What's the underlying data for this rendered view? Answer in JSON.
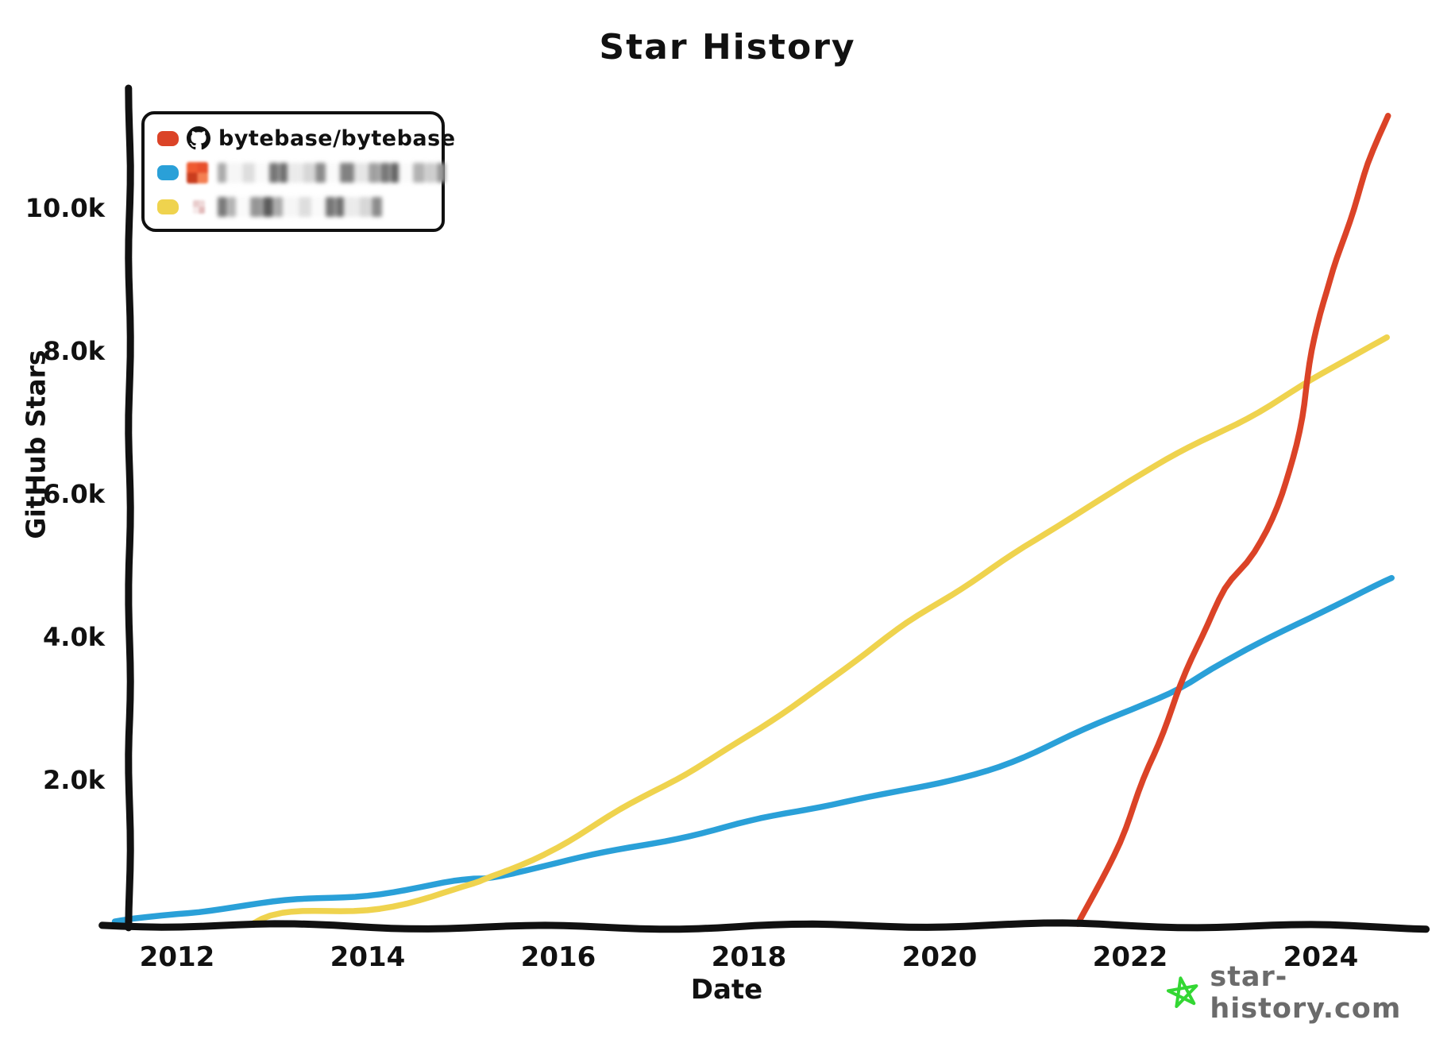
{
  "title": "Star History",
  "axes": {
    "x_label": "Date",
    "y_label": "GitHub Stars",
    "x_ticks": [
      2012,
      2014,
      2016,
      2018,
      2020,
      2022,
      2024
    ],
    "y_ticks": [
      {
        "label": "2.0k",
        "value": 2000
      },
      {
        "label": "4.0k",
        "value": 4000
      },
      {
        "label": "6.0k",
        "value": 6000
      },
      {
        "label": "8.0k",
        "value": 8000
      },
      {
        "label": "10.0k",
        "value": 10000
      }
    ]
  },
  "legend": {
    "items": [
      {
        "label": "bytebase/bytebase",
        "color": "#db4327",
        "icon": "github-logo",
        "redacted": false
      },
      {
        "label": "",
        "color": "#2aa0d8",
        "icon": "redacted-avatar",
        "redacted": true,
        "blur_segments": 19
      },
      {
        "label": "",
        "color": "#efd34e",
        "icon": "redacted-avatar-small",
        "redacted": true,
        "blur_segments": 14
      }
    ]
  },
  "watermark": {
    "text": "star-history.com",
    "icon": "green-star",
    "icon_color": "#33d733",
    "text_color": "#6b6b6b"
  },
  "colors": {
    "axis": "#111111",
    "background": "#ffffff",
    "red": "#db4327",
    "blue": "#2aa0d8",
    "yellow": "#efd34e"
  },
  "chart_data": {
    "type": "line",
    "title": "Star History",
    "xlabel": "Date",
    "ylabel": "GitHub Stars",
    "x_range": [
      2011.3,
      2025.1
    ],
    "y_range": [
      0,
      11600
    ],
    "grid": false,
    "legend_position": "top-left",
    "style": "hand-drawn (xkcd-like)",
    "series": [
      {
        "name": "bytebase/bytebase",
        "color": "#db4327",
        "points": [
          [
            2021.45,
            0
          ],
          [
            2021.7,
            600
          ],
          [
            2021.95,
            1300
          ],
          [
            2022.2,
            2200
          ],
          [
            2022.53,
            3300
          ],
          [
            2022.75,
            4000
          ],
          [
            2023.0,
            4700
          ],
          [
            2023.3,
            5200
          ],
          [
            2023.6,
            6000
          ],
          [
            2023.8,
            7100
          ],
          [
            2023.95,
            8300
          ],
          [
            2024.1,
            9000
          ],
          [
            2024.3,
            9800
          ],
          [
            2024.5,
            10600
          ],
          [
            2024.7,
            11300
          ]
        ]
      },
      {
        "name": "(redacted repo, blue)",
        "color": "#2aa0d8",
        "points": [
          [
            2011.35,
            0
          ],
          [
            2012,
            120
          ],
          [
            2013,
            280
          ],
          [
            2014,
            400
          ],
          [
            2015,
            600
          ],
          [
            2015.3,
            660
          ],
          [
            2016,
            850
          ],
          [
            2017,
            1120
          ],
          [
            2018,
            1400
          ],
          [
            2019,
            1700
          ],
          [
            2020,
            1950
          ],
          [
            2021,
            2400
          ],
          [
            2022,
            3000
          ],
          [
            2022.53,
            3300
          ],
          [
            2023,
            3650
          ],
          [
            2024,
            4350
          ],
          [
            2024.75,
            4800
          ]
        ]
      },
      {
        "name": "(redacted repo, yellow)",
        "color": "#efd34e",
        "points": [
          [
            2012.8,
            0
          ],
          [
            2013.1,
            130
          ],
          [
            2014,
            180
          ],
          [
            2015,
            500
          ],
          [
            2015.3,
            660
          ],
          [
            2016,
            1080
          ],
          [
            2017,
            1850
          ],
          [
            2018,
            2600
          ],
          [
            2019,
            3550
          ],
          [
            2020,
            4500
          ],
          [
            2021,
            5350
          ],
          [
            2022,
            6200
          ],
          [
            2023,
            6900
          ],
          [
            2024,
            7650
          ],
          [
            2024.7,
            8200
          ]
        ]
      }
    ]
  }
}
